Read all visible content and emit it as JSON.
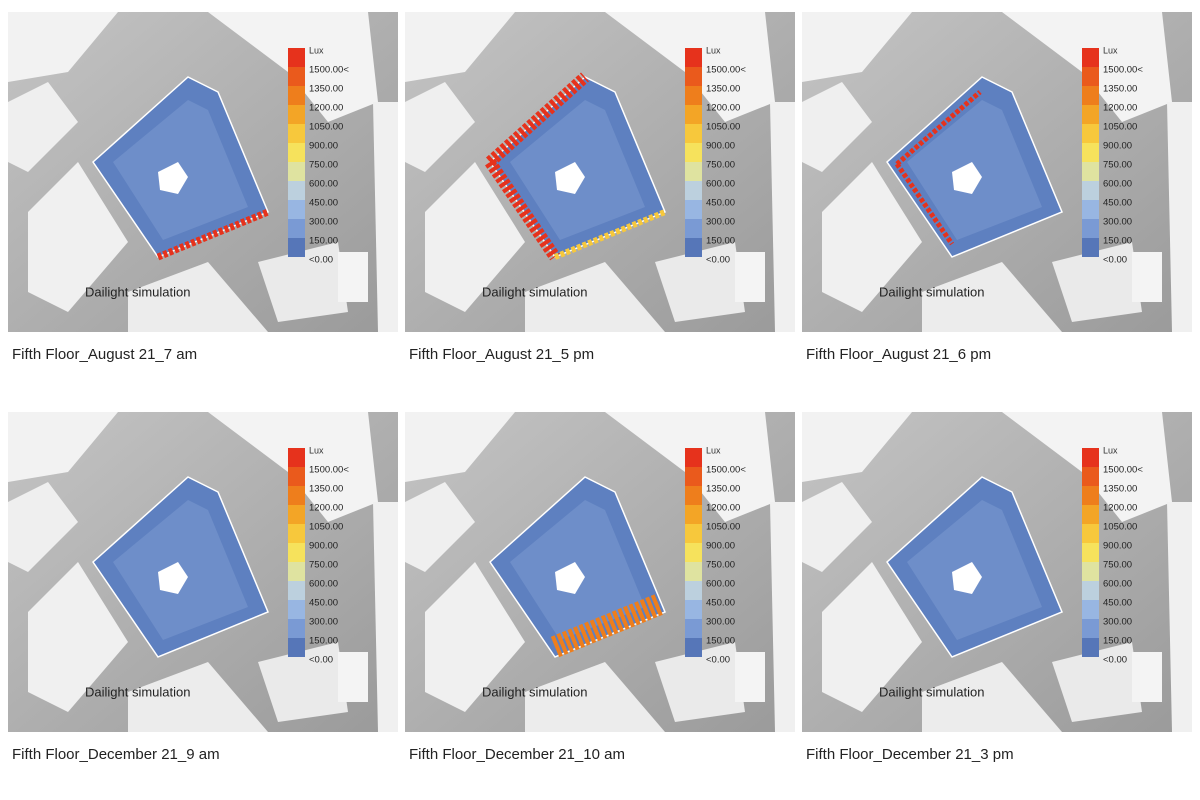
{
  "image_label": "Dailight simulation",
  "legend": {
    "title": "Lux",
    "labels": [
      "1500.00<",
      "1350.00",
      "1200.00",
      "1050.00",
      "900.00",
      "750.00",
      "600.00",
      "450.00",
      "300.00",
      "150.00",
      "<0.00"
    ],
    "colors": [
      "#e6321c",
      "#ea5a1c",
      "#ee7e1c",
      "#f3a526",
      "#f7c83c",
      "#f6e25c",
      "#dfe3a0",
      "#bcd0de",
      "#98b6e2",
      "#7a9ad4",
      "#5676b8"
    ]
  },
  "panels": [
    {
      "caption": "Fifth Floor_August 21_7 am"
    },
    {
      "caption": "Fifth Floor_August 21_5 pm"
    },
    {
      "caption": "Fifth Floor_August 21_6 pm"
    },
    {
      "caption": "Fifth Floor_December 21_9 am"
    },
    {
      "caption": "Fifth Floor_December 21_10 am"
    },
    {
      "caption": "Fifth Floor_December 21_3 pm"
    }
  ]
}
